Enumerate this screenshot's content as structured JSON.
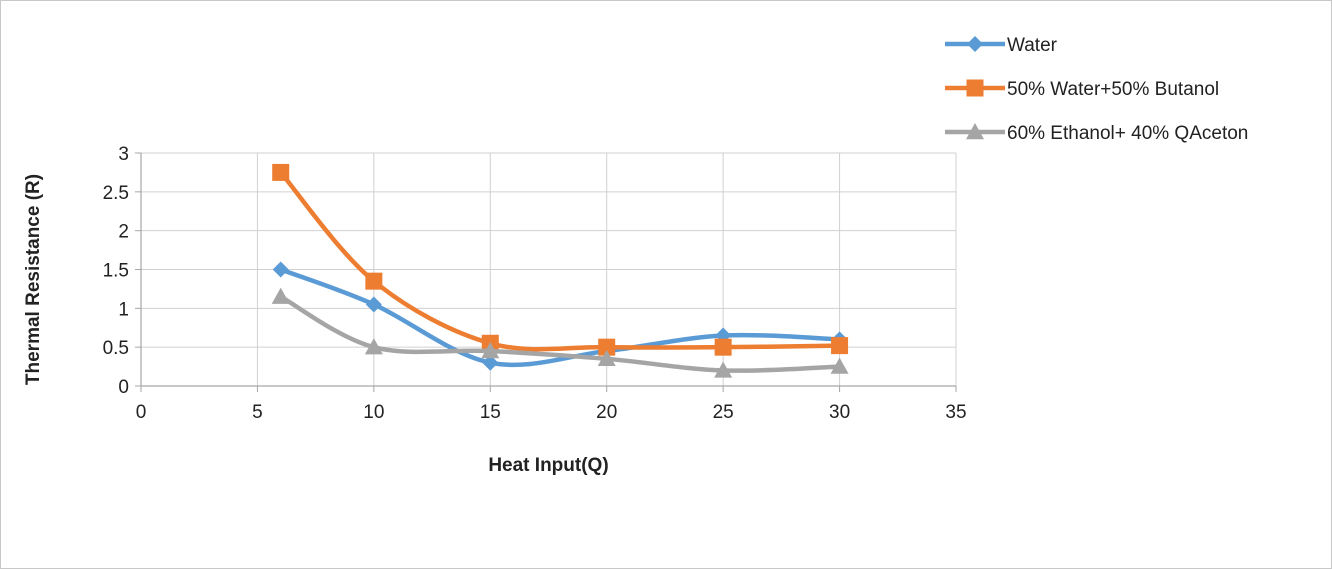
{
  "chart_data": {
    "type": "line",
    "title": "",
    "xlabel": "Heat Input(Q)",
    "ylabel": "Thermal Resistance (R)",
    "xlim": [
      0,
      35
    ],
    "ylim": [
      0,
      3
    ],
    "x_ticks": [
      0,
      5,
      10,
      15,
      20,
      25,
      30,
      35
    ],
    "y_ticks": [
      0,
      0.5,
      1,
      1.5,
      2,
      2.5,
      3
    ],
    "grid": true,
    "smooth": true,
    "legend_position": "top-right",
    "x": [
      6,
      10,
      15,
      20,
      25,
      30
    ],
    "series": [
      {
        "name": "Water",
        "values": [
          1.5,
          1.05,
          0.3,
          0.45,
          0.65,
          0.6
        ],
        "color": "#5b9bd5",
        "marker": "diamond"
      },
      {
        "name": "50% Water+50% Butanol",
        "values": [
          2.75,
          1.35,
          0.55,
          0.5,
          0.5,
          0.52
        ],
        "color": "#ed7d31",
        "marker": "square"
      },
      {
        "name": "60% Ethanol+ 40% QAceton",
        "values": [
          1.15,
          0.5,
          0.45,
          0.35,
          0.2,
          0.25
        ],
        "color": "#a5a5a5",
        "marker": "triangle"
      }
    ]
  }
}
